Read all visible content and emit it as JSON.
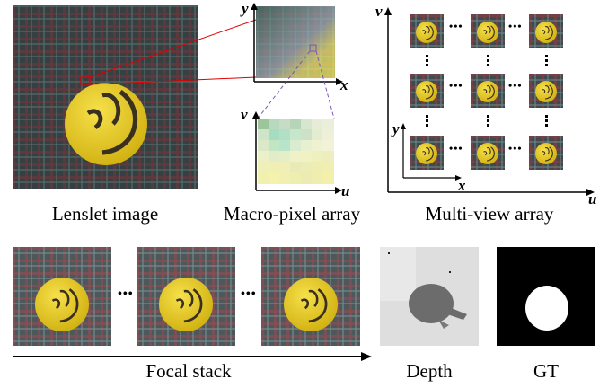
{
  "captions": {
    "lenslet": "Lenslet image",
    "macro": "Macro-pixel array",
    "multiview": "Multi-view array",
    "focal": "Focal stack",
    "depth": "Depth",
    "gt": "GT"
  },
  "axes": {
    "macro_top_y": "y",
    "macro_top_x": "x",
    "macro_bottom_v": "v",
    "macro_bottom_u": "u",
    "mv_outer_v": "v",
    "mv_outer_u": "u",
    "mv_inner_y": "y",
    "mv_inner_x": "x"
  },
  "ellipsis": "•••",
  "colors": {
    "zoom_line": "#e00000",
    "dashed_zoom": "#7a55b8",
    "ball": "#e8cf1a",
    "plaid_dark": "#2e3a3c",
    "plaid_red": "#8a3d44"
  }
}
